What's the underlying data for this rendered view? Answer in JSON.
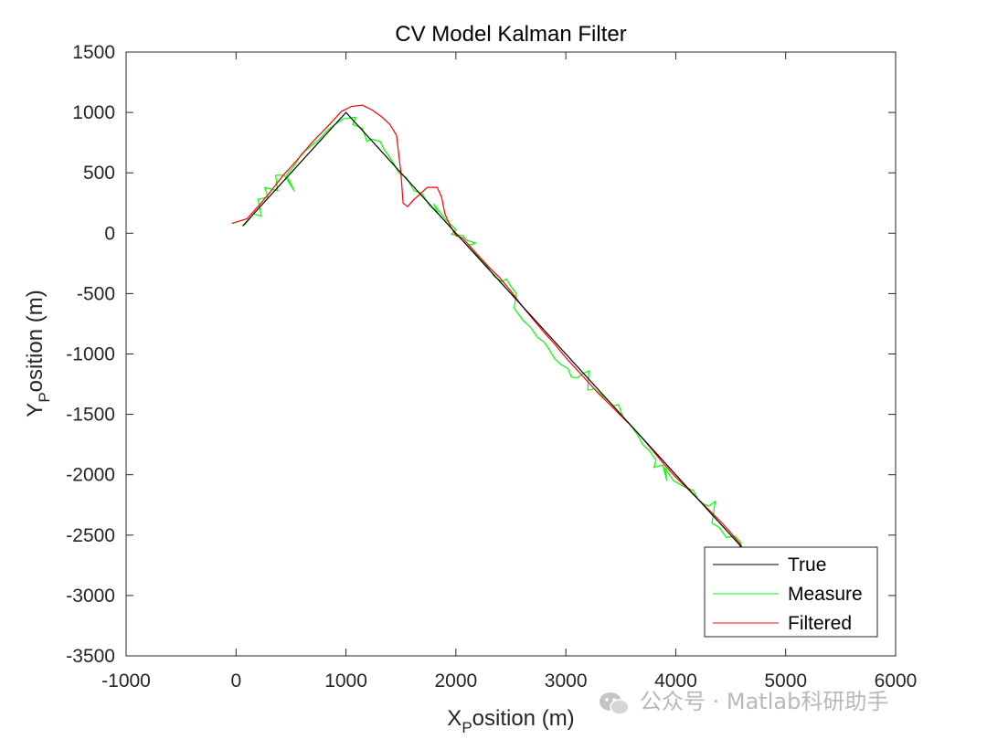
{
  "watermark": "公众号 · Matlab科研助手",
  "chart_data": {
    "type": "line",
    "title": "CV Model Kalman Filter",
    "xlabel": {
      "main": "X",
      "sub": "P",
      "rest": "osition (m)"
    },
    "ylabel": {
      "main": "Y",
      "sub": "P",
      "rest": "osition (m)"
    },
    "xlim": [
      -1000,
      6000
    ],
    "ylim": [
      -3500,
      1500
    ],
    "xticks": [
      -1000,
      0,
      1000,
      2000,
      3000,
      4000,
      5000,
      6000
    ],
    "yticks": [
      -3500,
      -3000,
      -2500,
      -2000,
      -1500,
      -1000,
      -500,
      0,
      500,
      1000,
      1500
    ],
    "grid": false,
    "legend_position": "bottom-right",
    "series": [
      {
        "name": "True",
        "color": "#000000",
        "x": [
          60,
          1000,
          4600
        ],
        "y": [
          60,
          1000,
          -2600
        ]
      },
      {
        "name": "Measure",
        "color": "#00ff00",
        "x": [
          70,
          160,
          230,
          200,
          290,
          260,
          380,
          360,
          440,
          530,
          460,
          530,
          600,
          680,
          760,
          840,
          900,
          980,
          1010,
          1090,
          1060,
          1150,
          1190,
          1230,
          1310,
          1350,
          1420,
          1480,
          1550,
          1620,
          1690,
          1760,
          1840,
          1800,
          1900,
          2000,
          1960,
          2060,
          2100,
          2180,
          2120,
          2210,
          2290,
          2350,
          2420,
          2460,
          2500,
          2550,
          2530,
          2610,
          2680,
          2740,
          2800,
          2840,
          2900,
          2960,
          3020,
          3050,
          3100,
          3160,
          3210,
          3200,
          3260,
          3340,
          3400,
          3430,
          3480,
          3520,
          3580,
          3660,
          3700,
          3760,
          3820,
          3800,
          3880,
          3920,
          3900,
          3980,
          4040,
          4100,
          4160,
          4200,
          4250,
          4300,
          4360,
          4330,
          4400,
          4460,
          4540,
          4590,
          4580
        ],
        "y": [
          60,
          160,
          140,
          280,
          300,
          380,
          350,
          480,
          480,
          350,
          480,
          560,
          660,
          720,
          780,
          860,
          900,
          950,
          950,
          960,
          900,
          870,
          760,
          780,
          760,
          690,
          600,
          500,
          460,
          350,
          330,
          230,
          160,
          240,
          120,
          30,
          -10,
          -20,
          -60,
          -80,
          -100,
          -200,
          -280,
          -360,
          -400,
          -380,
          -440,
          -500,
          -620,
          -720,
          -780,
          -860,
          -900,
          -950,
          -1040,
          -1090,
          -1120,
          -1190,
          -1200,
          -1160,
          -1140,
          -1300,
          -1290,
          -1350,
          -1400,
          -1430,
          -1420,
          -1530,
          -1580,
          -1680,
          -1750,
          -1800,
          -1880,
          -1940,
          -1920,
          -2050,
          -1940,
          -2050,
          -2080,
          -2110,
          -2130,
          -2200,
          -2240,
          -2260,
          -2220,
          -2400,
          -2440,
          -2520,
          -2510,
          -2560,
          -2600
        ]
      },
      {
        "name": "Filtered",
        "color": "#ff0000",
        "x": [
          -40,
          100,
          200,
          300,
          420,
          550,
          700,
          850,
          960,
          1050,
          1150,
          1240,
          1330,
          1400,
          1460,
          1500,
          1520,
          1560,
          1620,
          1680,
          1740,
          1830,
          1870,
          1900,
          1950,
          2000,
          2060,
          2120,
          2200,
          2300,
          2400,
          2500,
          2600,
          2700,
          2800,
          2900,
          3000,
          3100,
          3200,
          3300,
          3400,
          3500,
          3600,
          3700,
          3800,
          3900,
          4000,
          4100,
          4200,
          4300,
          4400,
          4500,
          4600
        ],
        "y": [
          80,
          120,
          220,
          330,
          470,
          600,
          760,
          900,
          1010,
          1050,
          1060,
          1020,
          960,
          900,
          810,
          500,
          250,
          220,
          280,
          330,
          380,
          380,
          300,
          160,
          60,
          -20,
          -40,
          -100,
          -180,
          -280,
          -370,
          -480,
          -600,
          -710,
          -820,
          -920,
          -1030,
          -1130,
          -1230,
          -1330,
          -1420,
          -1510,
          -1600,
          -1700,
          -1810,
          -1920,
          -2020,
          -2110,
          -2200,
          -2290,
          -2380,
          -2480,
          -2590
        ]
      }
    ]
  }
}
